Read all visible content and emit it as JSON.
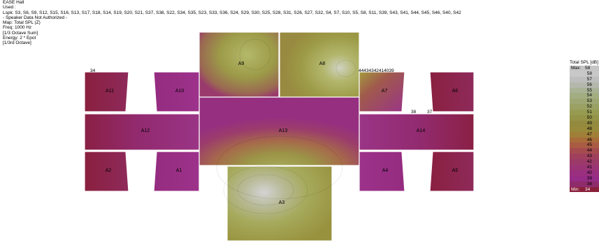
{
  "info": {
    "lines": [
      "EASE Hall",
      "Used :",
      "Lspk: S3, S6, S9, S12, S15, S16, S13, S17, S18, S14, S19, S20, S21, S37, S38, S22, S34, S35, S23, S33, S36, S24, S29, S30, S25, S28, S31, S26, S27, S32, S4, S7, S10, S5, S8, S11, S39, S43, S41, S44, S45, S46, S40, S42",
      "- Speaker Data Not Authorized -",
      "Map: Total SPL (Z)",
      "Freq: 1000 Hz",
      "[1/3 Octave Sum]",
      "Energy: 2 * Epot",
      "[1/3rd Octave]"
    ]
  },
  "areas": {
    "A1": "A1",
    "A2": "A2",
    "A3": "A3",
    "A4": "A4",
    "A5": "A5",
    "A6": "A6",
    "A7": "A7",
    "A8": "A8",
    "A9": "A9",
    "A10": "A10",
    "A11": "A11",
    "A12": "A12",
    "A13": "A13",
    "A14": "A14"
  },
  "speaker_labels": {
    "s34": "34",
    "cluster": "44434342414039",
    "s38": "38",
    "s37": "37"
  },
  "legend": {
    "title": "Total SPL [dB]",
    "max_label": "Max:",
    "max_value": "58",
    "min_label": "Min:",
    "min_value": "34",
    "scale": [
      "58",
      "57",
      "56",
      "55",
      "54",
      "53",
      "52",
      "51",
      "50",
      "49",
      "48",
      "47",
      "46",
      "45",
      "44",
      "43",
      "42",
      "41",
      "40",
      "39",
      "38"
    ],
    "colors": [
      "#c8c8c8",
      "#bebebe",
      "#b4b7ac",
      "#aab296",
      "#a2ad82",
      "#9ea774",
      "#9aa163",
      "#979b52",
      "#949348",
      "#938a40",
      "#978a3a",
      "#a07f38",
      "#a86c3a",
      "#a95c43",
      "#a54b50",
      "#a0405d",
      "#9b3a68",
      "#9a3474",
      "#9a2f80",
      "#962c86",
      "#8e2b6a"
    ],
    "max_color": "#c6c6c6",
    "min_color": "#8a1f3a"
  }
}
